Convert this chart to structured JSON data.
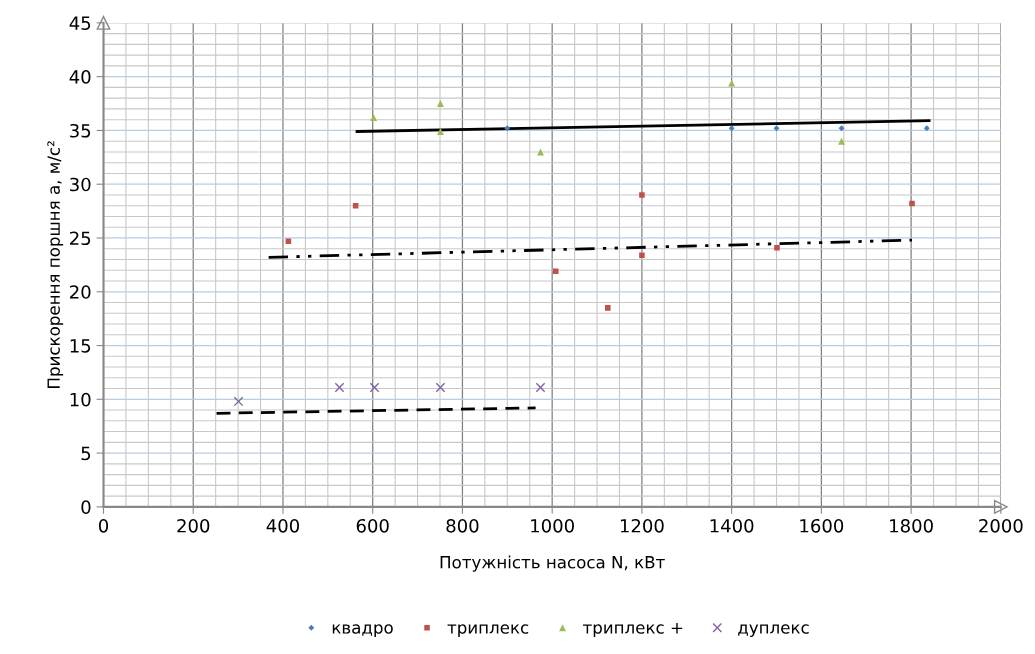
{
  "chart_data": {
    "type": "scatter",
    "xlabel": "Потужність насоса N, кВт",
    "ylabel": "Прискорення поршня a, м/с²",
    "xlim": [
      0,
      2000
    ],
    "xticks": [
      0,
      200,
      400,
      600,
      800,
      1000,
      1200,
      1400,
      1600,
      1800,
      2000
    ],
    "ylim": [
      0,
      45
    ],
    "yticks": [
      0,
      5,
      10,
      15,
      20,
      25,
      30,
      35,
      40,
      45
    ],
    "grid": true,
    "legend": "bottom",
    "series": [
      {
        "name": "квадро",
        "color": "#4a7ebb",
        "marker": "diamond",
        "x": [
          900,
          1400,
          1500,
          1645,
          1835
        ],
        "values": [
          35.2,
          35.2,
          35.2,
          35.2,
          35.2
        ]
      },
      {
        "name": "триплекс",
        "color": "#c0504d",
        "marker": "square",
        "x": [
          412,
          562,
          1008,
          1124,
          1200,
          1200,
          1501,
          1802
        ],
        "values": [
          24.7,
          28.0,
          21.9,
          18.5,
          29.0,
          23.4,
          24.1,
          28.2
        ]
      },
      {
        "name": "триплекс +",
        "color": "#9bbb59",
        "marker": "triangle",
        "x": [
          602,
          751,
          751,
          974,
          1400,
          1645
        ],
        "values": [
          36.2,
          37.5,
          34.9,
          33.0,
          39.4,
          34.0
        ]
      },
      {
        "name": "дуплекс",
        "color": "#8064a2",
        "marker": "cross",
        "x": [
          301,
          526,
          604,
          751,
          974
        ],
        "values": [
          9.8,
          11.1,
          11.1,
          11.1,
          11.1
        ]
      },
      {
        "type": "line",
        "color": "#000000",
        "line_style": "solid",
        "x": [
          565,
          1840
        ],
        "values": [
          34.9,
          35.9
        ]
      },
      {
        "type": "line",
        "color": "#000000",
        "line_style": "dotted",
        "x": [
          368,
          1802
        ],
        "values": [
          23.2,
          24.8
        ]
      },
      {
        "type": "line",
        "color": "#000000",
        "line_style": "dashed",
        "x": [
          252,
          963
        ],
        "values": [
          8.7,
          9.2
        ]
      }
    ]
  }
}
